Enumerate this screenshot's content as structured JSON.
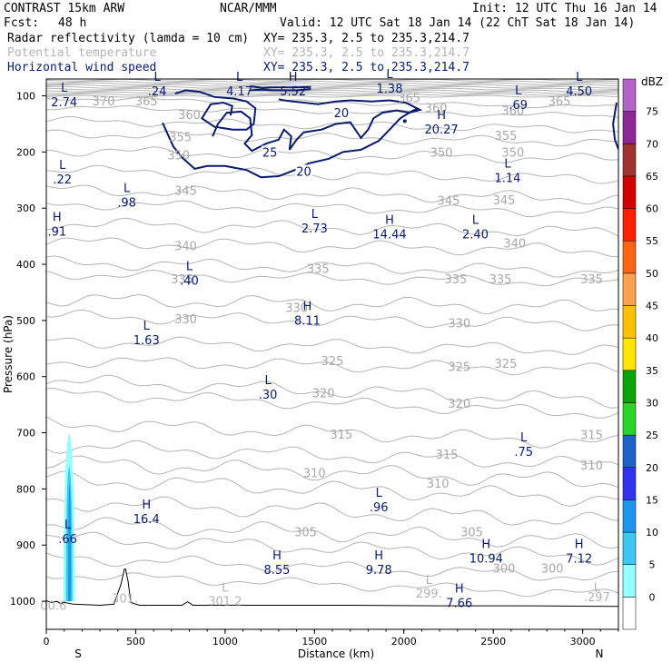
{
  "chart_data": {
    "type": "vertical-cross-section",
    "header": {
      "title_left": "CONTRAST 15km ARW",
      "title_center": "NCAR/MMM",
      "init": "Init: 12 UTC Thu 16 Jan 14",
      "fcst_label": "Fcst:",
      "fcst_value": "48 h",
      "valid": "Valid: 12 UTC Sat 18 Jan 14 (22 ChT Sat 18 Jan 14)"
    },
    "fields": [
      {
        "name": "Radar reflectivity (lamda = 10 cm)",
        "xy": "XY= 235.3,  2.5 to 235.3,214.7",
        "color": "#000000"
      },
      {
        "name": "Potential temperature",
        "xy": "XY= 235.3,  2.5 to 235.3,214.7",
        "color": "#b4b4b4"
      },
      {
        "name": "Horizontal wind speed",
        "xy": "XY= 235.3,  2.5 to 235.3,214.7",
        "color": "#0a1a6e"
      }
    ],
    "xlabel": "Distance (km)",
    "ylabel": "Pressure (hPa)",
    "xlim": [
      0,
      3200
    ],
    "ylim": [
      1050,
      70
    ],
    "xticks": [
      0,
      500,
      1000,
      1500,
      2000,
      2500,
      3000
    ],
    "yticks": [
      100,
      200,
      300,
      400,
      500,
      600,
      700,
      800,
      900,
      1000
    ],
    "x_end_labels": {
      "left": "S",
      "right": "N"
    },
    "colorbar": {
      "units": "dBZ",
      "levels": [
        0,
        5,
        10,
        15,
        20,
        25,
        30,
        35,
        40,
        45,
        50,
        55,
        60,
        65,
        70,
        75
      ],
      "colors": [
        "#ffffff",
        "#96ffff",
        "#3cc8f0",
        "#1e96f0",
        "#3232f0",
        "#1e64c8",
        "#2ad52a",
        "#08a408",
        "#ffe600",
        "#ffc000",
        "#ffa050",
        "#ff6414",
        "#ff1e00",
        "#d20000",
        "#a03232",
        "#8c2896",
        "#b464c8"
      ]
    },
    "theta_labels": [
      {
        "text": "370",
        "x": 320,
        "p": 109
      },
      {
        "text": "365",
        "x": 560,
        "p": 109
      },
      {
        "text": "365",
        "x": 2030,
        "p": 103
      },
      {
        "text": "365",
        "x": 2870,
        "p": 109
      },
      {
        "text": "360",
        "x": 800,
        "p": 133
      },
      {
        "text": "360",
        "x": 2180,
        "p": 121
      },
      {
        "text": "360",
        "x": 2610,
        "p": 126
      },
      {
        "text": "355",
        "x": 750,
        "p": 173
      },
      {
        "text": "355",
        "x": 2570,
        "p": 170
      },
      {
        "text": "350",
        "x": 740,
        "p": 205
      },
      {
        "text": "350",
        "x": 2210,
        "p": 200
      },
      {
        "text": "350",
        "x": 2610,
        "p": 200
      },
      {
        "text": "345",
        "x": 780,
        "p": 268
      },
      {
        "text": "345",
        "x": 2250,
        "p": 286
      },
      {
        "text": "345",
        "x": 2560,
        "p": 285
      },
      {
        "text": "340",
        "x": 780,
        "p": 367
      },
      {
        "text": "340",
        "x": 2620,
        "p": 362
      },
      {
        "text": "335",
        "x": 760,
        "p": 426
      },
      {
        "text": "335",
        "x": 1520,
        "p": 407
      },
      {
        "text": "335",
        "x": 2290,
        "p": 426
      },
      {
        "text": "335",
        "x": 2540,
        "p": 426
      },
      {
        "text": "335",
        "x": 3050,
        "p": 426
      },
      {
        "text": "330",
        "x": 780,
        "p": 497
      },
      {
        "text": "330",
        "x": 1400,
        "p": 477
      },
      {
        "text": "330",
        "x": 2310,
        "p": 504
      },
      {
        "text": "325",
        "x": 1600,
        "p": 571
      },
      {
        "text": "325",
        "x": 2310,
        "p": 582
      },
      {
        "text": "325",
        "x": 2570,
        "p": 576
      },
      {
        "text": "320",
        "x": 1550,
        "p": 629
      },
      {
        "text": "320",
        "x": 2310,
        "p": 647
      },
      {
        "text": "315",
        "x": 1650,
        "p": 702
      },
      {
        "text": "315",
        "x": 2240,
        "p": 738
      },
      {
        "text": "315",
        "x": 3050,
        "p": 703
      },
      {
        "text": "310",
        "x": 1500,
        "p": 771
      },
      {
        "text": "310",
        "x": 2190,
        "p": 790
      },
      {
        "text": "310",
        "x": 3050,
        "p": 757
      },
      {
        "text": "305",
        "x": 1450,
        "p": 876
      },
      {
        "text": "305",
        "x": 2380,
        "p": 876
      },
      {
        "text": "300",
        "x": 2560,
        "p": 941
      },
      {
        "text": "300",
        "x": 2830,
        "p": 941
      }
    ],
    "wind_labels": [
      {
        "text": "20",
        "x": 1650,
        "p": 130
      },
      {
        "text": "20",
        "x": 1440,
        "p": 234
      },
      {
        "text": "25",
        "x": 1250,
        "p": 200
      }
    ],
    "extrema": [
      {
        "kind": "L",
        "value": "2.74",
        "x": 100,
        "p": 102
      },
      {
        "kind": "L",
        "value": ".24",
        "x": 620,
        "p": 83
      },
      {
        "kind": "L",
        "value": "4.17",
        "x": 1080,
        "p": 83
      },
      {
        "kind": "H",
        "value": "5.52",
        "x": 1380,
        "p": 83
      },
      {
        "kind": "L",
        "value": "1.38",
        "x": 1920,
        "p": 78
      },
      {
        "kind": "L",
        "value": ".69",
        "x": 2640,
        "p": 107
      },
      {
        "kind": "L",
        "value": "4.50",
        "x": 2980,
        "p": 83
      },
      {
        "kind": "H",
        "value": "20.27",
        "x": 2210,
        "p": 151
      },
      {
        "kind": "L",
        "value": ".22",
        "x": 90,
        "p": 240
      },
      {
        "kind": "L",
        "value": ".98",
        "x": 450,
        "p": 281
      },
      {
        "kind": "L",
        "value": "1.14",
        "x": 2580,
        "p": 237
      },
      {
        "kind": "H",
        "value": ".91",
        "x": 60,
        "p": 333
      },
      {
        "kind": "L",
        "value": "2.73",
        "x": 1500,
        "p": 327
      },
      {
        "kind": "H",
        "value": "14.44",
        "x": 1920,
        "p": 338
      },
      {
        "kind": "L",
        "value": "2.40",
        "x": 2400,
        "p": 338
      },
      {
        "kind": "L",
        "value": ".40",
        "x": 800,
        "p": 420
      },
      {
        "kind": "H",
        "value": "8.11",
        "x": 1460,
        "p": 491
      },
      {
        "kind": "L",
        "value": "1.63",
        "x": 560,
        "p": 526
      },
      {
        "kind": "L",
        "value": ".30",
        "x": 1240,
        "p": 623
      },
      {
        "kind": "L",
        "value": ".75",
        "x": 2670,
        "p": 725
      },
      {
        "kind": "L",
        "value": ".96",
        "x": 1860,
        "p": 824
      },
      {
        "kind": "L",
        "value": ".66",
        "x": 120,
        "p": 880
      },
      {
        "kind": "H",
        "value": "16.4",
        "x": 560,
        "p": 845
      },
      {
        "kind": "H",
        "value": "8.55",
        "x": 1290,
        "p": 935
      },
      {
        "kind": "H",
        "value": "9.78",
        "x": 1860,
        "p": 935
      },
      {
        "kind": "H",
        "value": "10.94",
        "x": 2460,
        "p": 915
      },
      {
        "kind": "H",
        "value": "7.12",
        "x": 2980,
        "p": 915
      },
      {
        "kind": "H",
        "value": "7.66",
        "x": 2310,
        "p": 994
      }
    ],
    "faint_labels": [
      {
        "text": "L",
        "x": 2140,
        "p": 969
      },
      {
        "text": "299.",
        "x": 2140,
        "p": 993
      },
      {
        "text": "L",
        "x": 1000,
        "p": 983
      },
      {
        "text": "301.2",
        "x": 1000,
        "p": 1007
      },
      {
        "text": "L",
        "x": 3080,
        "p": 983
      },
      {
        "text": ".297",
        "x": 3080,
        "p": 1000
      },
      {
        "text": "301.",
        "x": 440,
        "p": 1002
      },
      {
        "text": "00.6",
        "x": 40,
        "p": 1015
      }
    ]
  }
}
